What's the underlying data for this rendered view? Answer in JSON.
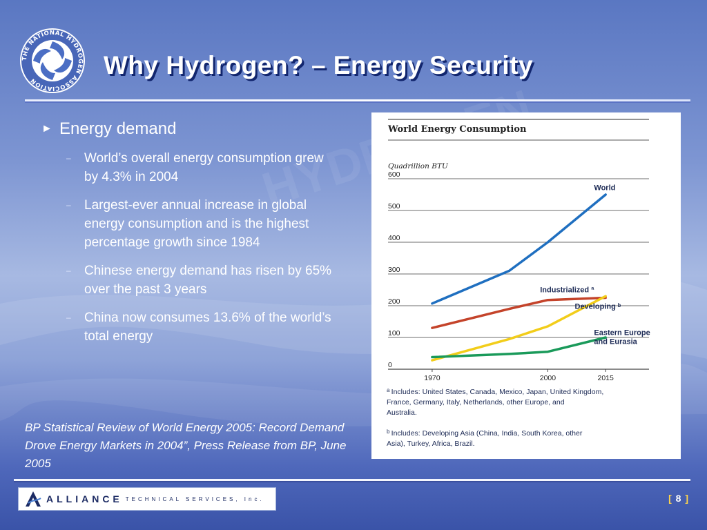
{
  "slide": {
    "title": "Why Hydrogen? – Energy Security",
    "logo_ring_text": "THE NATIONAL HYDROGEN ASSOCIATION",
    "page_number_left": "[",
    "page_number": "8",
    "page_number_right": "]"
  },
  "bullets": {
    "main": "Energy demand",
    "subs": [
      "World’s overall energy consumption grew by 4.3% in 2004",
      "Largest-ever annual increase in global energy consumption and is the highest percentage growth since 1984",
      "Chinese energy demand has risen by 65% over the past 3 years",
      "China now consumes 13.6% of the world’s total energy"
    ]
  },
  "source_citation": "BP Statistical Review of  World Energy 2005: Record Demand Drove Energy Markets in 2004”, Press Release from BP, June 2005",
  "company": {
    "name": "ALLIANCE",
    "tagline": "TECHNICAL SERVICES, Inc."
  },
  "colors": {
    "world": "#1f6fc0",
    "industrialized": "#c4432a",
    "developing": "#f2cd1a",
    "eastern_europe": "#1a9a5a"
  },
  "chart_data": {
    "type": "line",
    "title": "World Energy Consumption",
    "ylabel": "Quadrillion BTU",
    "xlabel": "",
    "x": [
      1970,
      1990,
      2000,
      2015
    ],
    "x_ticks": [
      "1970",
      "2000",
      "2015"
    ],
    "y_ticks": [
      "0",
      "100",
      "200",
      "300",
      "400",
      "500",
      "600"
    ],
    "ylim": [
      0,
      600
    ],
    "grid": true,
    "series": [
      {
        "name": "World",
        "values": [
          207,
          310,
          400,
          550
        ]
      },
      {
        "name": "Industrialized ª",
        "values": [
          130,
          190,
          218,
          225
        ]
      },
      {
        "name": "Developing ᵇ",
        "values": [
          28,
          95,
          135,
          230
        ]
      },
      {
        "name": "Eastern Europe and Eurasia",
        "values": [
          38,
          48,
          55,
          100
        ]
      }
    ],
    "footnotes": [
      {
        "mark": "a",
        "text": "Includes: United States, Canada, Mexico, Japan, United Kingdom, France, Germany, Italy, Netherlands, other Europe, and Australia."
      },
      {
        "mark": "b",
        "text": "Includes: Developing Asia (China, India, South Korea, other Asia), Turkey, Africa, Brazil."
      }
    ]
  }
}
